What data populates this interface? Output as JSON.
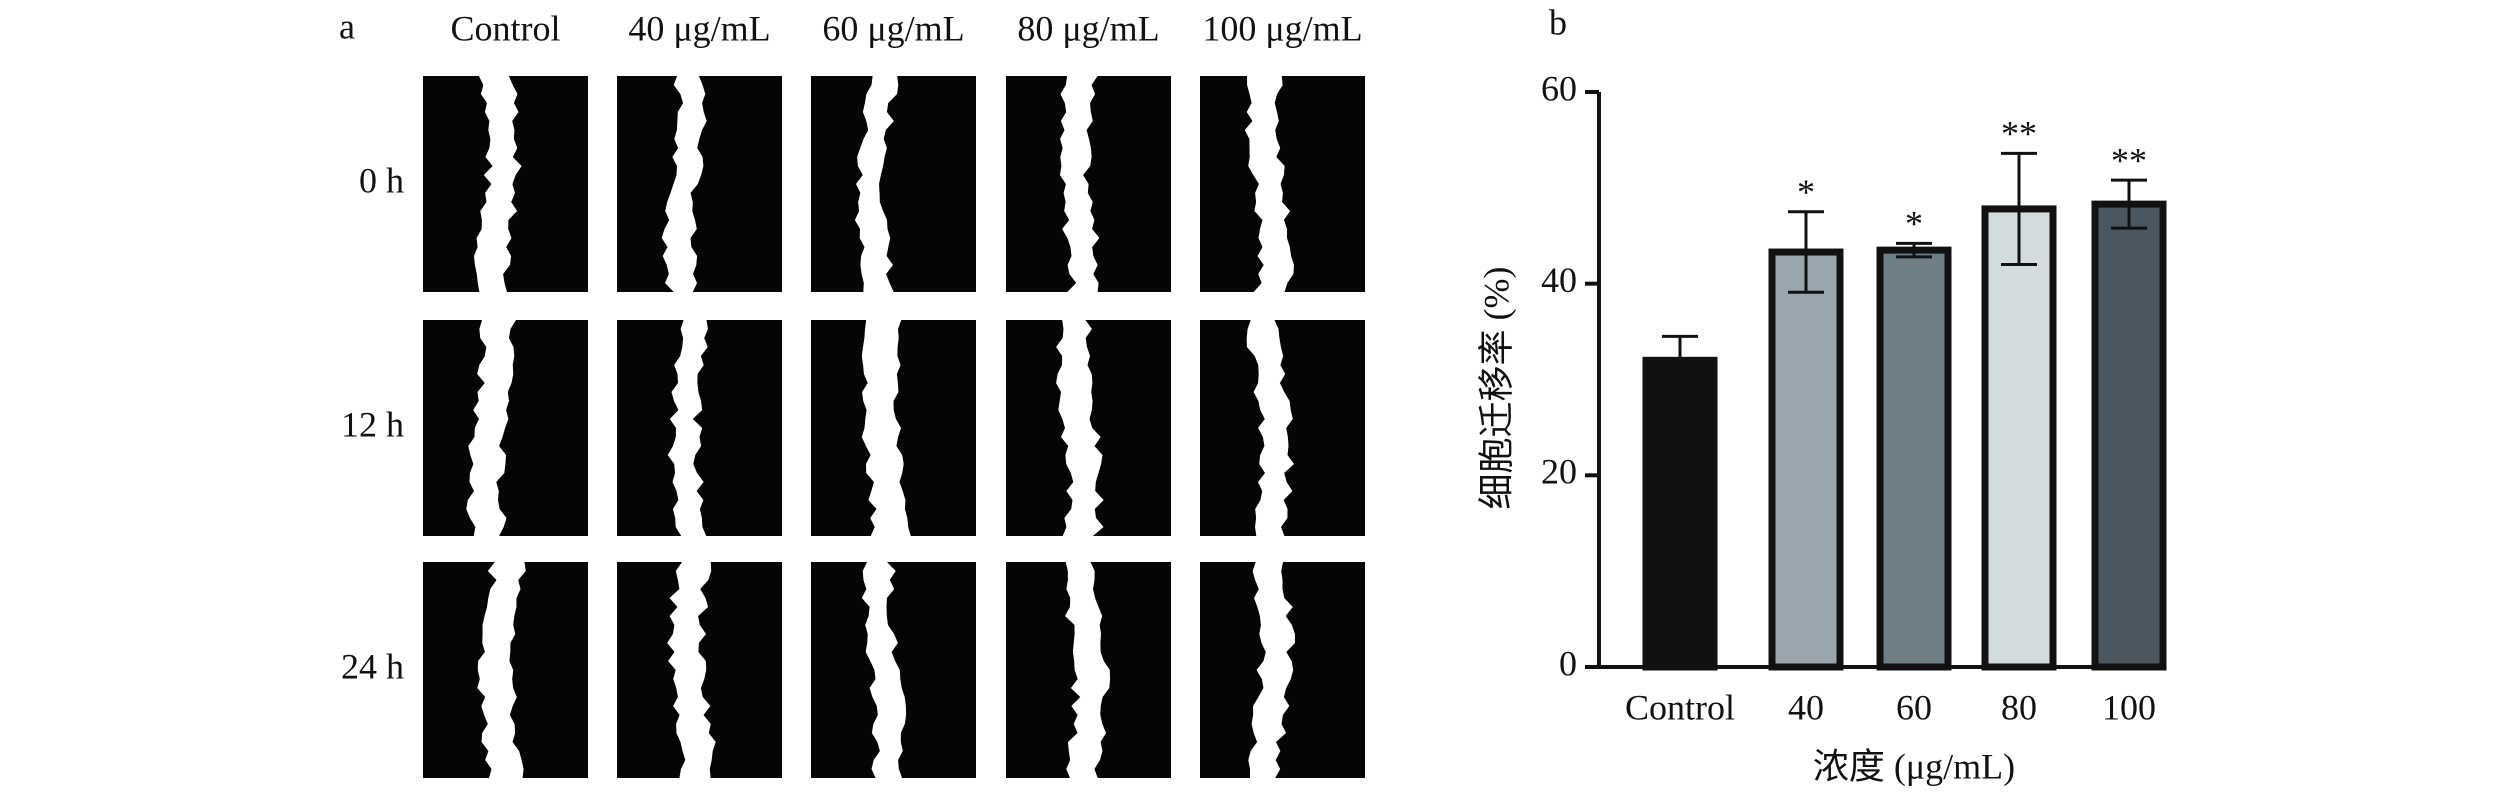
{
  "panel_a": {
    "label": "a",
    "columns": [
      "Control",
      "40 μg/mL",
      "60 μg/mL",
      "80 μg/mL",
      "100 μg/mL"
    ],
    "rows": [
      "0 h",
      "12 h",
      "24 h"
    ]
  },
  "chart_data": {
    "type": "bar",
    "panel_label": "b",
    "y_label": "细胞迁移率 (%)",
    "x_label": "浓度 (μg/mL)",
    "categories": [
      "Control",
      "40",
      "60",
      "80",
      "100"
    ],
    "values": [
      32,
      43.3,
      43.5,
      47.8,
      48.3
    ],
    "errors": [
      2.5,
      4.2,
      0.7,
      5.8,
      2.5
    ],
    "annotations": [
      null,
      "*",
      "*",
      "**",
      "**"
    ],
    "colors": [
      "#111111",
      "#9aa6ae",
      "#6e7f88",
      "#d3dcdd",
      "#4a5761"
    ],
    "ylim": [
      0,
      60
    ],
    "yticks": [
      0,
      20,
      40,
      60
    ]
  }
}
